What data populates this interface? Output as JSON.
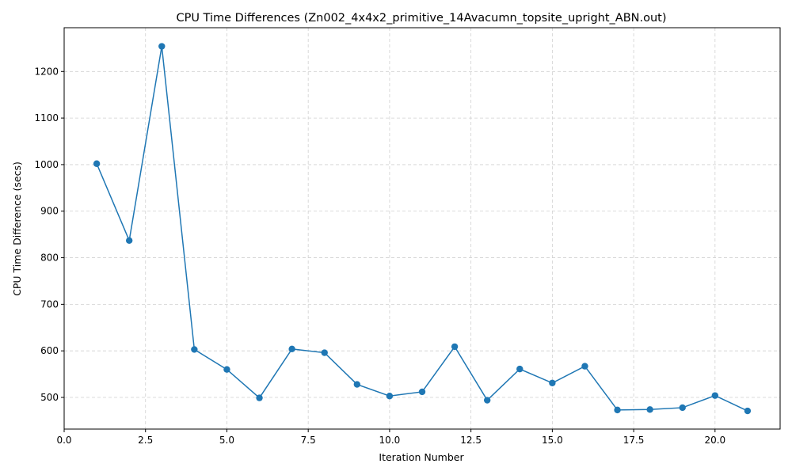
{
  "chart_data": {
    "type": "line",
    "title": "CPU Time Differences (Zn002_4x4x2_primitive_14Avacumn_topsite_upright_ABN.out)",
    "xlabel": "Iteration Number",
    "ylabel": "CPU Time Difference (secs)",
    "xlim": [
      0,
      22.0
    ],
    "ylim": [
      432,
      1294
    ],
    "xticks": [
      0.0,
      2.5,
      5.0,
      7.5,
      10.0,
      12.5,
      15.0,
      17.5,
      20.0
    ],
    "xtick_labels": [
      "0.0",
      "2.5",
      "5.0",
      "7.5",
      "10.0",
      "12.5",
      "15.0",
      "17.5",
      "20.0"
    ],
    "yticks": [
      500,
      600,
      700,
      800,
      900,
      1000,
      1100,
      1200
    ],
    "ytick_labels": [
      "500",
      "600",
      "700",
      "800",
      "900",
      "1000",
      "1100",
      "1200"
    ],
    "grid": true,
    "color": "#1f77b4",
    "marker": "circle",
    "series": [
      {
        "x": [
          1,
          2,
          3,
          4,
          5,
          6,
          7,
          8,
          9,
          10,
          11,
          12,
          13,
          14,
          15,
          16,
          17,
          18,
          19,
          20,
          21
        ],
        "values": [
          1002,
          837,
          1254,
          603,
          560,
          499,
          604,
          596,
          528,
          503,
          512,
          609,
          494,
          561,
          531,
          567,
          473,
          474,
          478,
          504,
          471
        ]
      }
    ]
  }
}
